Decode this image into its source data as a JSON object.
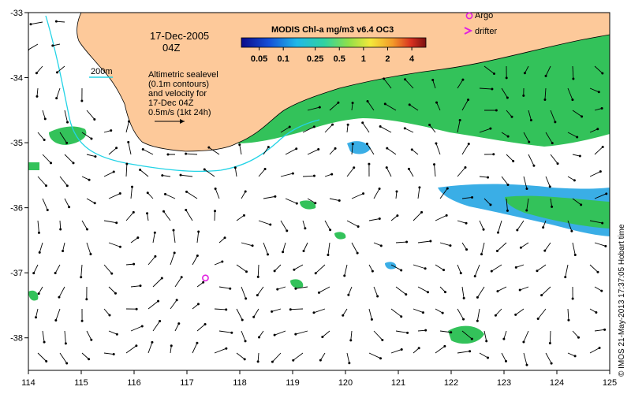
{
  "map": {
    "date": "17-Dec-2005",
    "time": "04Z",
    "colorbar_title": "MODIS Chl-a mg/m3 v6.4 OC3",
    "colorbar_ticks": [
      "0.05",
      "0.1",
      "0.25",
      "0.5",
      "1",
      "2",
      "4"
    ],
    "contour_label": "200m",
    "sealevel_note": [
      "Altimetric sealevel",
      "(0.1m contours)",
      "and velocity for",
      "17-Dec 04Z",
      "0.5m/s (1kt 24h)"
    ],
    "legend": {
      "argo": "Argo",
      "drifter": "drifter"
    },
    "credit": "© IMOS 21-May-2013 17:37:05 Hobart time",
    "x_ticks": [
      "114",
      "115",
      "116",
      "117",
      "118",
      "119",
      "120",
      "121",
      "122",
      "123",
      "124",
      "125"
    ],
    "y_ticks": [
      "-33",
      "-34",
      "-35",
      "-36",
      "-37",
      "-38"
    ],
    "lon_range": [
      114,
      125
    ],
    "lat_range": [
      -38.5,
      -33
    ],
    "colors": {
      "land": "#fdc99a",
      "shelf_contour": "#22d3e6",
      "chl_green": "#33c25a",
      "chl_green_dark": "#1c9e43",
      "chl_cyan": "#3aaee6",
      "arrow": "#000000",
      "argo_marker": "#e020e0"
    },
    "argo_position": {
      "lon": 117.35,
      "lat": -37.08
    }
  }
}
